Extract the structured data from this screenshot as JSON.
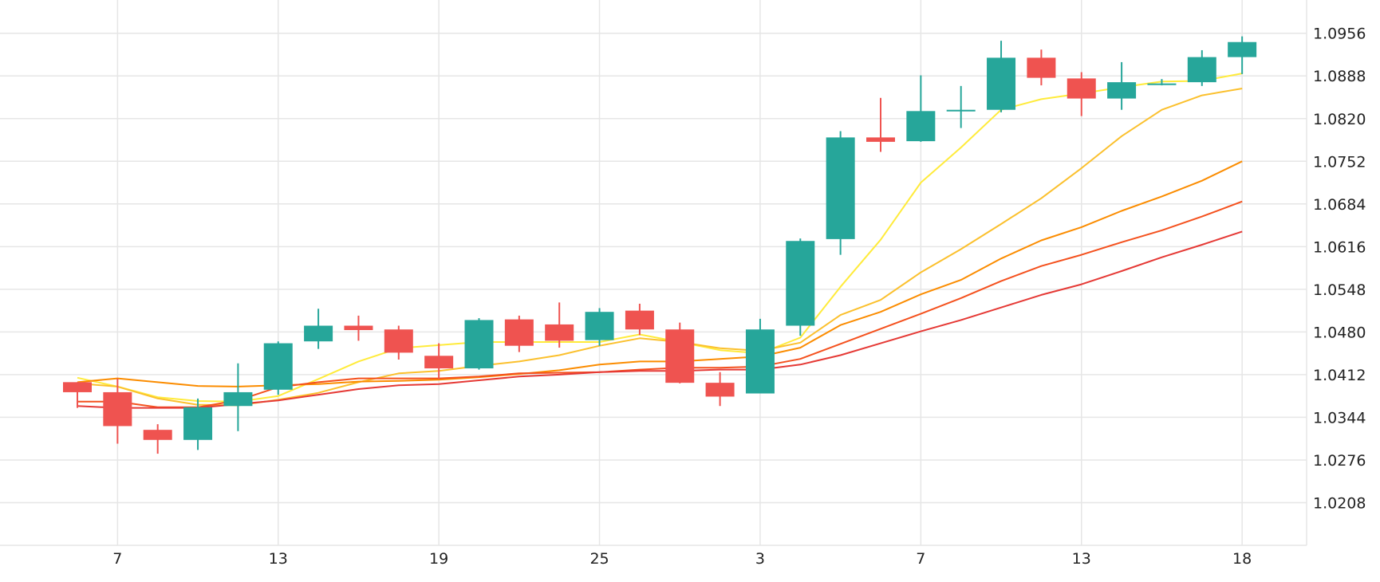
{
  "chart_data": {
    "type": "candlestick",
    "title": "",
    "xlabel": "",
    "ylabel": "",
    "ylim": [
      1.014,
      1.1009
    ],
    "y_ticks": [
      "1.0208",
      "1.0276",
      "1.0344",
      "1.0412",
      "1.0480",
      "1.0548",
      "1.0616",
      "1.0684",
      "1.0752",
      "1.0820",
      "1.0888",
      "1.0956"
    ],
    "x_ticks": [
      {
        "label": "7",
        "index": 1
      },
      {
        "label": "13",
        "index": 5
      },
      {
        "label": "19",
        "index": 9
      },
      {
        "label": "25",
        "index": 13
      },
      {
        "label": "3",
        "index": 17
      },
      {
        "label": "7",
        "index": 21
      },
      {
        "label": "13",
        "index": 25
      },
      {
        "label": "18",
        "index": 29
      }
    ],
    "grid": true,
    "colors": {
      "up": "#26a69a",
      "down": "#ef5350",
      "grid": "#e6e6e6",
      "ma": [
        "#ffeb3b",
        "#fbc02d",
        "#fb8c00",
        "#f4511e",
        "#e53935"
      ]
    },
    "candles": [
      {
        "o": 1.04,
        "h": 1.04,
        "l": 1.0359,
        "c": 1.0384
      },
      {
        "o": 1.0384,
        "h": 1.0406,
        "l": 1.0302,
        "c": 1.033
      },
      {
        "o": 1.0324,
        "h": 1.0333,
        "l": 1.0286,
        "c": 1.0308
      },
      {
        "o": 1.0308,
        "h": 1.0374,
        "l": 1.0292,
        "c": 1.036
      },
      {
        "o": 1.0362,
        "h": 1.043,
        "l": 1.0322,
        "c": 1.0384
      },
      {
        "o": 1.0388,
        "h": 1.0465,
        "l": 1.038,
        "c": 1.0462
      },
      {
        "o": 1.0465,
        "h": 1.0517,
        "l": 1.0453,
        "c": 1.049
      },
      {
        "o": 1.049,
        "h": 1.0506,
        "l": 1.0466,
        "c": 1.0483
      },
      {
        "o": 1.0484,
        "h": 1.049,
        "l": 1.0436,
        "c": 1.0447
      },
      {
        "o": 1.0442,
        "h": 1.0462,
        "l": 1.0405,
        "c": 1.0422
      },
      {
        "o": 1.0422,
        "h": 1.0502,
        "l": 1.042,
        "c": 1.0499
      },
      {
        "o": 1.05,
        "h": 1.0506,
        "l": 1.0448,
        "c": 1.0458
      },
      {
        "o": 1.0492,
        "h": 1.0527,
        "l": 1.0455,
        "c": 1.0466
      },
      {
        "o": 1.0467,
        "h": 1.0518,
        "l": 1.0458,
        "c": 1.0512
      },
      {
        "o": 1.0514,
        "h": 1.0525,
        "l": 1.0475,
        "c": 1.0484
      },
      {
        "o": 1.0484,
        "h": 1.0495,
        "l": 1.0398,
        "c": 1.0399
      },
      {
        "o": 1.0399,
        "h": 1.0416,
        "l": 1.0362,
        "c": 1.0377
      },
      {
        "o": 1.0382,
        "h": 1.0501,
        "l": 1.0382,
        "c": 1.0484
      },
      {
        "o": 1.049,
        "h": 1.0629,
        "l": 1.0474,
        "c": 1.0625
      },
      {
        "o": 1.0628,
        "h": 1.08,
        "l": 1.0603,
        "c": 1.079
      },
      {
        "o": 1.079,
        "h": 1.0853,
        "l": 1.0767,
        "c": 1.0783
      },
      {
        "o": 1.0784,
        "h": 1.0889,
        "l": 1.0783,
        "c": 1.0832
      },
      {
        "o": 1.0834,
        "h": 1.0872,
        "l": 1.0805,
        "c": 1.0834
      },
      {
        "o": 1.0834,
        "h": 1.0944,
        "l": 1.083,
        "c": 1.0917
      },
      {
        "o": 1.0917,
        "h": 1.093,
        "l": 1.0873,
        "c": 1.0885
      },
      {
        "o": 1.0884,
        "h": 1.0894,
        "l": 1.0824,
        "c": 1.0852
      },
      {
        "o": 1.0852,
        "h": 1.091,
        "l": 1.0834,
        "c": 1.0878
      },
      {
        "o": 1.0876,
        "h": 1.0883,
        "l": 1.0873,
        "c": 1.0876
      },
      {
        "o": 1.0878,
        "h": 1.0929,
        "l": 1.0872,
        "c": 1.0918
      },
      {
        "o": 1.0918,
        "h": 1.0951,
        "l": 1.0891,
        "c": 1.0942
      }
    ],
    "series": [
      {
        "values": [
          1.0407,
          1.0393,
          1.0376,
          1.037,
          1.0369,
          1.0378,
          1.0405,
          1.0433,
          1.0454,
          1.0459,
          1.0464,
          1.0464,
          1.0464,
          1.0464,
          1.0476,
          1.0464,
          1.0451,
          1.0446,
          1.0471,
          1.0552,
          1.0627,
          1.0718,
          1.0774,
          1.0834,
          1.0851,
          1.086,
          1.087,
          1.0879,
          1.088,
          1.0892
        ]
      },
      {
        "values": [
          1.0398,
          1.0393,
          1.0374,
          1.0364,
          1.0363,
          1.0372,
          1.0383,
          1.04,
          1.0414,
          1.0418,
          1.0426,
          1.0433,
          1.0443,
          1.0458,
          1.047,
          1.0464,
          1.0454,
          1.045,
          1.0463,
          1.0507,
          1.0531,
          1.0575,
          1.0612,
          1.0652,
          1.0693,
          1.0741,
          1.0792,
          1.0834,
          1.0857,
          1.0868
        ]
      },
      {
        "values": [
          1.04,
          1.0406,
          1.04,
          1.0394,
          1.0393,
          1.0395,
          1.0397,
          1.0401,
          1.0402,
          1.0404,
          1.0408,
          1.0413,
          1.0419,
          1.0428,
          1.0433,
          1.0433,
          1.0437,
          1.0441,
          1.0455,
          1.0491,
          1.0512,
          1.054,
          1.0563,
          1.0597,
          1.0626,
          1.0647,
          1.0673,
          1.0696,
          1.0721,
          1.0752
        ]
      },
      {
        "values": [
          1.0369,
          1.0369,
          1.036,
          1.036,
          1.0371,
          1.0392,
          1.04,
          1.0406,
          1.0406,
          1.0406,
          1.0409,
          1.0414,
          1.0415,
          1.0416,
          1.042,
          1.0423,
          1.0423,
          1.0425,
          1.0437,
          1.0461,
          1.0485,
          1.0509,
          1.0534,
          1.0561,
          1.0585,
          1.0603,
          1.0623,
          1.0642,
          1.0664,
          1.0688
        ]
      },
      {
        "values": [
          1.0362,
          1.0359,
          1.0359,
          1.0359,
          1.0365,
          1.0371,
          1.038,
          1.0389,
          1.0395,
          1.0397,
          1.0403,
          1.0409,
          1.0412,
          1.0416,
          1.0418,
          1.0418,
          1.042,
          1.042,
          1.0428,
          1.0443,
          1.0462,
          1.0481,
          1.0499,
          1.0519,
          1.0539,
          1.0556,
          1.0577,
          1.0599,
          1.0619,
          1.064
        ]
      }
    ]
  }
}
